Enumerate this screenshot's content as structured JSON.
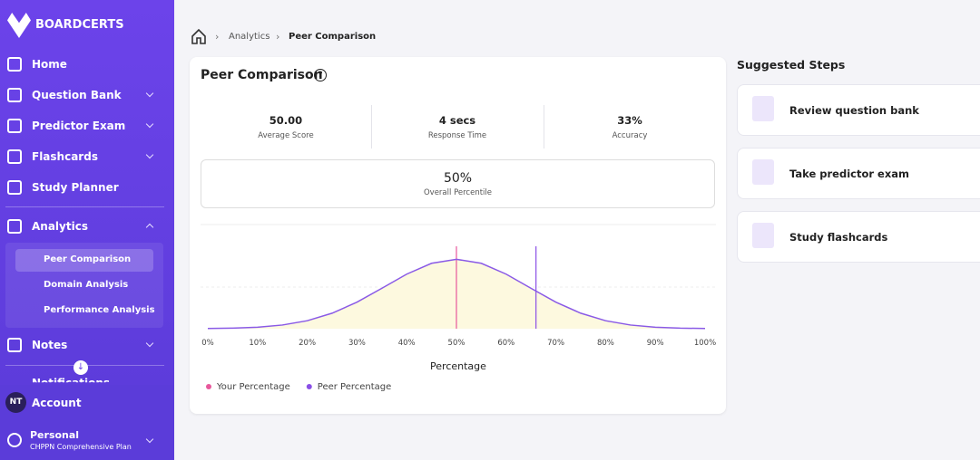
{
  "sidebar": {
    "brand": "BOARDCERTS",
    "nav": [
      "Home",
      "Question Bank",
      "Predictor Exam",
      "Flashcards",
      "Study Planner",
      "Analytics"
    ],
    "submenu": [
      "Peer Comparison",
      "Domain Analysis",
      "Performance Analysis"
    ],
    "more": [
      "Notes",
      "Notifications"
    ],
    "avatar": "NT",
    "account": "Account",
    "plan": {
      "title": "Personal",
      "subtitle": "CHPPN Comprehensive Plan"
    }
  },
  "breadcrumb": [
    "Analytics",
    "Peer Comparison"
  ],
  "card": {
    "title": "Peer Comparison",
    "stats": [
      {
        "value": "50.00",
        "label": "Average Score"
      },
      {
        "value": "4 secs",
        "label": "Response Time"
      },
      {
        "value": "33%",
        "label": "Accuracy"
      }
    ],
    "overall": {
      "value": "50%",
      "label": "Overall Percentile"
    }
  },
  "chart_data": {
    "type": "area",
    "x_label": "Percentage",
    "x": [
      0,
      5,
      10,
      15,
      20,
      25,
      30,
      35,
      40,
      45,
      50,
      55,
      60,
      65,
      70,
      75,
      80,
      85,
      90,
      95,
      100
    ],
    "values": [
      0.3,
      0.8,
      2.1,
      5.3,
      11.5,
      22.3,
      38.2,
      58.2,
      78.6,
      94.2,
      100,
      94.2,
      78.6,
      58.2,
      38.2,
      22.3,
      11.5,
      5.3,
      2.1,
      0.8,
      0.3
    ],
    "color": "#8a5ae6",
    "fill": "#fdf9df",
    "xlim": [
      0,
      100
    ],
    "ylim": [
      0,
      150
    ],
    "xticks": [
      {
        "value": 0,
        "label": "0%"
      },
      {
        "value": 10,
        "label": "10%"
      },
      {
        "value": 20,
        "label": "20%"
      },
      {
        "value": 30,
        "label": "30%"
      },
      {
        "value": 40,
        "label": "40%"
      },
      {
        "value": 50,
        "label": "50%"
      },
      {
        "value": 60,
        "label": "60%"
      },
      {
        "value": 70,
        "label": "70%"
      },
      {
        "value": 80,
        "label": "80%"
      },
      {
        "value": 90,
        "label": "90%"
      },
      {
        "value": 100,
        "label": "100%"
      }
    ],
    "markers": [
      {
        "name": "Your Percentage",
        "color": "#e8589c",
        "value": 50
      },
      {
        "name": "Peer Percentage",
        "color": "#8a4fe6",
        "value": 66
      }
    ],
    "legend": "bottom-left"
  },
  "suggested": {
    "title": "Suggested Steps",
    "items": [
      "Review question bank",
      "Take predictor exam",
      "Study flashcards"
    ]
  }
}
